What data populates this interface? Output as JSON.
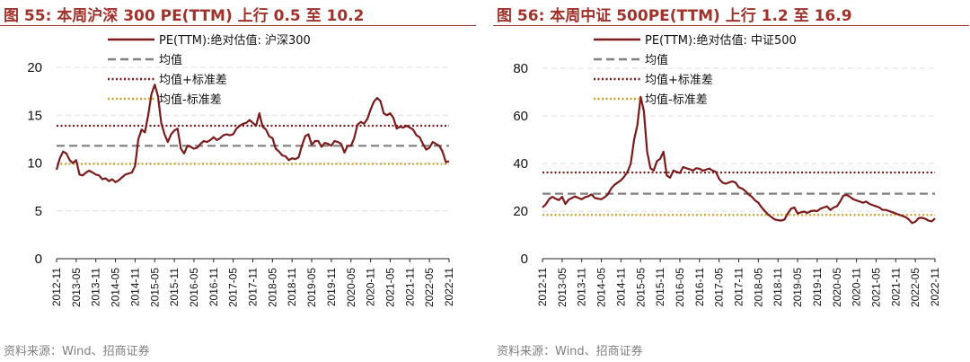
{
  "source": "资料来源：Wind、招商证券",
  "colors": {
    "pe": "#7b1a1a",
    "mean": "#7f7f7f",
    "upper": "#7b1a1a",
    "lower": "#c9a227",
    "grid": "#dcdcdc",
    "title": "#a0322c"
  },
  "chart_data": [
    {
      "type": "line",
      "title": "图 55:  本周沪深 300 PE(TTM) 上行 0.5 至 10.2",
      "ylim": [
        0,
        20
      ],
      "yticks": [
        "0",
        "5",
        "10",
        "15",
        "20"
      ],
      "xticks": [
        "2012-11",
        "2013-05",
        "2013-11",
        "2014-05",
        "2014-11",
        "2015-05",
        "2015-11",
        "2016-05",
        "2016-11",
        "2017-05",
        "2017-11",
        "2018-05",
        "2018-11",
        "2019-05",
        "2019-11",
        "2020-05",
        "2020-11",
        "2021-05",
        "2021-11",
        "2022-05",
        "2022-11"
      ],
      "legend": [
        "PE(TTM):绝对估值: 沪深300",
        "均值",
        "均值+标准差",
        "均值-标准差"
      ],
      "mean": 11.8,
      "upper": 13.9,
      "lower": 9.9,
      "series": [
        {
          "name": "PE(TTM):绝对估值: 沪深300",
          "points": [
            [
              "2012-11",
              9.3
            ],
            [
              "2012-12",
              10.5
            ],
            [
              "2013-01",
              11.2
            ],
            [
              "2013-02",
              11.0
            ],
            [
              "2013-03",
              10.3
            ],
            [
              "2013-04",
              10.0
            ],
            [
              "2013-05",
              10.3
            ],
            [
              "2013-06",
              8.8
            ],
            [
              "2013-07",
              8.7
            ],
            [
              "2013-08",
              9.0
            ],
            [
              "2013-09",
              9.2
            ],
            [
              "2013-10",
              9.0
            ],
            [
              "2013-11",
              8.8
            ],
            [
              "2013-12",
              8.7
            ],
            [
              "2014-01",
              8.3
            ],
            [
              "2014-02",
              8.4
            ],
            [
              "2014-03",
              8.1
            ],
            [
              "2014-04",
              8.3
            ],
            [
              "2014-05",
              8.0
            ],
            [
              "2014-06",
              8.2
            ],
            [
              "2014-07",
              8.5
            ],
            [
              "2014-08",
              8.8
            ],
            [
              "2014-09",
              8.9
            ],
            [
              "2014-10",
              9.0
            ],
            [
              "2014-11",
              9.7
            ],
            [
              "2014-12",
              12.5
            ],
            [
              "2015-01",
              13.5
            ],
            [
              "2015-02",
              13.2
            ],
            [
              "2015-03",
              15.0
            ],
            [
              "2015-04",
              17.2
            ],
            [
              "2015-05",
              18.2
            ],
            [
              "2015-06",
              17.0
            ],
            [
              "2015-07",
              14.2
            ],
            [
              "2015-08",
              13.0
            ],
            [
              "2015-09",
              12.2
            ],
            [
              "2015-10",
              13.0
            ],
            [
              "2015-11",
              13.4
            ],
            [
              "2015-12",
              13.6
            ],
            [
              "2016-01",
              11.5
            ],
            [
              "2016-02",
              11.0
            ],
            [
              "2016-03",
              11.8
            ],
            [
              "2016-04",
              11.7
            ],
            [
              "2016-05",
              11.5
            ],
            [
              "2016-06",
              11.6
            ],
            [
              "2016-07",
              12.0
            ],
            [
              "2016-08",
              12.3
            ],
            [
              "2016-09",
              12.2
            ],
            [
              "2016-10",
              12.4
            ],
            [
              "2016-11",
              12.7
            ],
            [
              "2016-12",
              12.4
            ],
            [
              "2017-01",
              12.6
            ],
            [
              "2017-02",
              12.9
            ],
            [
              "2017-03",
              13.0
            ],
            [
              "2017-04",
              12.9
            ],
            [
              "2017-05",
              13.0
            ],
            [
              "2017-06",
              13.6
            ],
            [
              "2017-07",
              13.9
            ],
            [
              "2017-08",
              14.1
            ],
            [
              "2017-09",
              14.2
            ],
            [
              "2017-10",
              14.5
            ],
            [
              "2017-11",
              14.2
            ],
            [
              "2017-12",
              13.9
            ],
            [
              "2018-01",
              15.2
            ],
            [
              "2018-02",
              13.8
            ],
            [
              "2018-03",
              13.5
            ],
            [
              "2018-04",
              12.8
            ],
            [
              "2018-05",
              12.6
            ],
            [
              "2018-06",
              11.5
            ],
            [
              "2018-07",
              11.2
            ],
            [
              "2018-08",
              10.8
            ],
            [
              "2018-09",
              10.7
            ],
            [
              "2018-10",
              10.3
            ],
            [
              "2018-11",
              10.5
            ],
            [
              "2018-12",
              10.4
            ],
            [
              "2019-01",
              10.6
            ],
            [
              "2019-02",
              11.8
            ],
            [
              "2019-03",
              12.8
            ],
            [
              "2019-04",
              13.0
            ],
            [
              "2019-05",
              11.9
            ],
            [
              "2019-06",
              12.3
            ],
            [
              "2019-07",
              12.3
            ],
            [
              "2019-08",
              11.7
            ],
            [
              "2019-09",
              12.1
            ],
            [
              "2019-10",
              12.0
            ],
            [
              "2019-11",
              11.8
            ],
            [
              "2019-12",
              12.3
            ],
            [
              "2020-01",
              12.2
            ],
            [
              "2020-02",
              12.0
            ],
            [
              "2020-03",
              11.1
            ],
            [
              "2020-04",
              11.8
            ],
            [
              "2020-05",
              11.8
            ],
            [
              "2020-06",
              12.6
            ],
            [
              "2020-07",
              14.0
            ],
            [
              "2020-08",
              14.3
            ],
            [
              "2020-09",
              14.1
            ],
            [
              "2020-10",
              14.6
            ],
            [
              "2020-11",
              15.6
            ],
            [
              "2020-12",
              16.4
            ],
            [
              "2021-01",
              16.8
            ],
            [
              "2021-02",
              16.5
            ],
            [
              "2021-03",
              15.2
            ],
            [
              "2021-04",
              15.0
            ],
            [
              "2021-05",
              15.2
            ],
            [
              "2021-06",
              14.7
            ],
            [
              "2021-07",
              13.6
            ],
            [
              "2021-08",
              13.8
            ],
            [
              "2021-09",
              13.7
            ],
            [
              "2021-10",
              13.9
            ],
            [
              "2021-11",
              13.7
            ],
            [
              "2021-12",
              13.5
            ],
            [
              "2022-01",
              12.9
            ],
            [
              "2022-02",
              12.7
            ],
            [
              "2022-03",
              12.0
            ],
            [
              "2022-04",
              11.4
            ],
            [
              "2022-05",
              11.6
            ],
            [
              "2022-06",
              12.2
            ],
            [
              "2022-07",
              12.0
            ],
            [
              "2022-08",
              11.8
            ],
            [
              "2022-09",
              11.2
            ],
            [
              "2022-10",
              10.1
            ],
            [
              "2022-11",
              10.2
            ]
          ]
        }
      ]
    },
    {
      "type": "line",
      "title": "图 56:  本周中证 500PE(TTM) 上行 1.2 至 16.9",
      "ylim": [
        0,
        80
      ],
      "yticks": [
        "0",
        "20",
        "40",
        "60",
        "80"
      ],
      "xticks": [
        "2012-11",
        "2013-05",
        "2013-11",
        "2014-05",
        "2014-11",
        "2015-05",
        "2015-11",
        "2016-05",
        "2016-11",
        "2017-05",
        "2017-11",
        "2018-05",
        "2018-11",
        "2019-05",
        "2019-11",
        "2020-05",
        "2020-11",
        "2021-05",
        "2021-11",
        "2022-05",
        "2022-11"
      ],
      "legend": [
        "PE(TTM):绝对估值: 中证500",
        "均值",
        "均值+标准差",
        "均值-标准差"
      ],
      "mean": 27.3,
      "upper": 36.2,
      "lower": 18.4,
      "series": [
        {
          "name": "PE(TTM):绝对估值: 中证500",
          "points": [
            [
              "2012-11",
              21.5
            ],
            [
              "2012-12",
              22.8
            ],
            [
              "2013-01",
              25.0
            ],
            [
              "2013-02",
              26.0
            ],
            [
              "2013-03",
              25.2
            ],
            [
              "2013-04",
              24.6
            ],
            [
              "2013-05",
              26.0
            ],
            [
              "2013-06",
              23.0
            ],
            [
              "2013-07",
              24.8
            ],
            [
              "2013-08",
              25.5
            ],
            [
              "2013-09",
              26.2
            ],
            [
              "2013-10",
              25.5
            ],
            [
              "2013-11",
              25.0
            ],
            [
              "2013-12",
              25.8
            ],
            [
              "2014-01",
              26.2
            ],
            [
              "2014-02",
              27.0
            ],
            [
              "2014-03",
              25.5
            ],
            [
              "2014-04",
              25.2
            ],
            [
              "2014-05",
              25.0
            ],
            [
              "2014-06",
              25.8
            ],
            [
              "2014-07",
              27.0
            ],
            [
              "2014-08",
              29.5
            ],
            [
              "2014-09",
              31.0
            ],
            [
              "2014-10",
              32.0
            ],
            [
              "2014-11",
              33.0
            ],
            [
              "2014-12",
              34.5
            ],
            [
              "2015-01",
              36.5
            ],
            [
              "2015-02",
              40.0
            ],
            [
              "2015-03",
              50.0
            ],
            [
              "2015-04",
              56.0
            ],
            [
              "2015-05",
              68.0
            ],
            [
              "2015-06",
              62.0
            ],
            [
              "2015-07",
              45.0
            ],
            [
              "2015-08",
              38.0
            ],
            [
              "2015-09",
              37.0
            ],
            [
              "2015-10",
              41.0
            ],
            [
              "2015-11",
              42.0
            ],
            [
              "2015-12",
              45.0
            ],
            [
              "2016-01",
              35.0
            ],
            [
              "2016-02",
              34.0
            ],
            [
              "2016-03",
              37.0
            ],
            [
              "2016-04",
              36.5
            ],
            [
              "2016-05",
              36.0
            ],
            [
              "2016-06",
              38.5
            ],
            [
              "2016-07",
              38.0
            ],
            [
              "2016-08",
              37.6
            ],
            [
              "2016-09",
              37.0
            ],
            [
              "2016-10",
              38.0
            ],
            [
              "2016-11",
              37.8
            ],
            [
              "2016-12",
              37.0
            ],
            [
              "2017-01",
              37.4
            ],
            [
              "2017-02",
              37.9
            ],
            [
              "2017-03",
              37.0
            ],
            [
              "2017-04",
              36.5
            ],
            [
              "2017-05",
              33.5
            ],
            [
              "2017-06",
              32.0
            ],
            [
              "2017-07",
              31.5
            ],
            [
              "2017-08",
              32.0
            ],
            [
              "2017-09",
              32.5
            ],
            [
              "2017-10",
              32.0
            ],
            [
              "2017-11",
              30.0
            ],
            [
              "2017-12",
              29.5
            ],
            [
              "2018-01",
              28.5
            ],
            [
              "2018-02",
              27.0
            ],
            [
              "2018-03",
              26.0
            ],
            [
              "2018-04",
              24.5
            ],
            [
              "2018-05",
              23.5
            ],
            [
              "2018-06",
              21.5
            ],
            [
              "2018-07",
              20.0
            ],
            [
              "2018-08",
              18.5
            ],
            [
              "2018-09",
              17.5
            ],
            [
              "2018-10",
              16.5
            ],
            [
              "2018-11",
              16.2
            ],
            [
              "2018-12",
              16.0
            ],
            [
              "2019-01",
              16.5
            ],
            [
              "2019-02",
              19.0
            ],
            [
              "2019-03",
              21.0
            ],
            [
              "2019-04",
              21.5
            ],
            [
              "2019-05",
              19.0
            ],
            [
              "2019-06",
              19.5
            ],
            [
              "2019-07",
              19.8
            ],
            [
              "2019-08",
              19.2
            ],
            [
              "2019-09",
              20.0
            ],
            [
              "2019-10",
              20.2
            ],
            [
              "2019-11",
              20.0
            ],
            [
              "2019-12",
              21.0
            ],
            [
              "2020-01",
              21.5
            ],
            [
              "2020-02",
              22.0
            ],
            [
              "2020-03",
              20.5
            ],
            [
              "2020-04",
              21.5
            ],
            [
              "2020-05",
              22.0
            ],
            [
              "2020-06",
              24.0
            ],
            [
              "2020-07",
              26.5
            ],
            [
              "2020-08",
              26.8
            ],
            [
              "2020-09",
              26.0
            ],
            [
              "2020-10",
              25.0
            ],
            [
              "2020-11",
              24.5
            ],
            [
              "2020-12",
              24.0
            ],
            [
              "2021-01",
              23.5
            ],
            [
              "2021-02",
              24.0
            ],
            [
              "2021-03",
              23.0
            ],
            [
              "2021-04",
              22.5
            ],
            [
              "2021-05",
              22.0
            ],
            [
              "2021-06",
              21.5
            ],
            [
              "2021-07",
              20.5
            ],
            [
              "2021-08",
              20.5
            ],
            [
              "2021-09",
              20.0
            ],
            [
              "2021-10",
              19.5
            ],
            [
              "2021-11",
              19.0
            ],
            [
              "2021-12",
              18.5
            ],
            [
              "2022-01",
              18.0
            ],
            [
              "2022-02",
              17.5
            ],
            [
              "2022-03",
              16.5
            ],
            [
              "2022-04",
              15.0
            ],
            [
              "2022-05",
              15.5
            ],
            [
              "2022-06",
              17.0
            ],
            [
              "2022-07",
              17.2
            ],
            [
              "2022-08",
              16.8
            ],
            [
              "2022-09",
              16.0
            ],
            [
              "2022-10",
              15.7
            ],
            [
              "2022-11",
              16.9
            ]
          ]
        }
      ]
    }
  ]
}
